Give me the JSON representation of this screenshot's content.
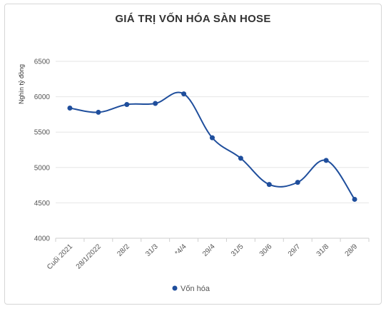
{
  "chart_data": {
    "type": "line",
    "title": "GIÁ TRỊ VỐN HÓA SÀN HOSE",
    "ylabel": "Nghìn tỷ đồng",
    "xlabel": "",
    "categories": [
      "Cuối 2021",
      "28/1/2022",
      "28/2",
      "31/3",
      "*4/4",
      "29/4",
      "31/5",
      "30/6",
      "29/7",
      "31/8",
      "28/9"
    ],
    "series": [
      {
        "name": "Vốn hóa",
        "values": [
          5840,
          5780,
          5890,
          5905,
          6040,
          5420,
          5130,
          4760,
          4790,
          5100,
          4550
        ]
      }
    ],
    "ylim": [
      4000,
      6500
    ],
    "yticks": [
      4000,
      4500,
      5000,
      5500,
      6000,
      6500
    ],
    "grid": true,
    "legend": "bottom-center",
    "colors": {
      "series": "#1f4e9c",
      "grid": "#e6e6e6",
      "axis": "#cfcfcf"
    }
  }
}
